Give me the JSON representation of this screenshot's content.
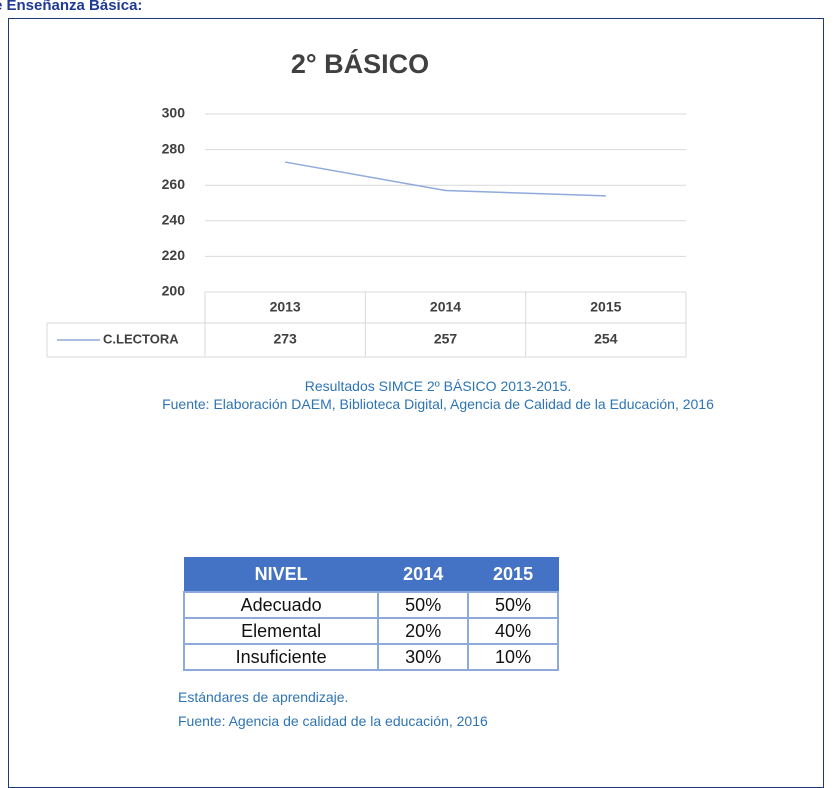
{
  "header": {
    "title": "e Enseñanza Básica:"
  },
  "chart_data": {
    "type": "line",
    "title": "2° BÁSICO",
    "categories": [
      "2013",
      "2014",
      "2015"
    ],
    "series": [
      {
        "name": "C.LECTORA",
        "color": "#8faadc",
        "values": [
          273,
          257,
          254
        ]
      }
    ],
    "ylim": [
      200,
      300
    ],
    "yticks": [
      200,
      220,
      240,
      260,
      280,
      300
    ],
    "grid": true
  },
  "caption1": {
    "line1": "Resultados SIMCE 2º BÁSICO 2013-2015.",
    "line2": "Fuente: Elaboración DAEM, Biblioteca Digital, Agencia de Calidad de la Educación, 2016"
  },
  "table": {
    "header": [
      "NIVEL",
      "2014",
      "2015"
    ],
    "rows": [
      [
        "Adecuado",
        "50%",
        "50%"
      ],
      [
        "Elemental",
        "20%",
        "40%"
      ],
      [
        "Insuficiente",
        "30%",
        "10%"
      ]
    ]
  },
  "caption2": {
    "line1": "Estándares de aprendizaje.",
    "line2": "Fuente: Agencia de calidad de la educación, 2016"
  }
}
